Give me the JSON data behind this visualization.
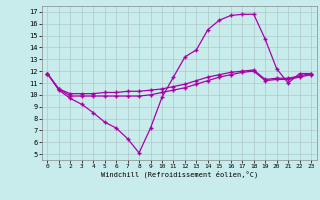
{
  "xlabel": "Windchill (Refroidissement éolien,°C)",
  "xlim": [
    -0.5,
    23.5
  ],
  "ylim": [
    4.5,
    17.5
  ],
  "yticks": [
    5,
    6,
    7,
    8,
    9,
    10,
    11,
    12,
    13,
    14,
    15,
    16,
    17
  ],
  "xticks": [
    0,
    1,
    2,
    3,
    4,
    5,
    6,
    7,
    8,
    9,
    10,
    11,
    12,
    13,
    14,
    15,
    16,
    17,
    18,
    19,
    20,
    21,
    22,
    23
  ],
  "background_color": "#c8ecec",
  "grid_color": "#b0c8c8",
  "line_color": "#aa00aa",
  "line1_x": [
    0,
    1,
    2,
    3,
    4,
    5,
    6,
    7,
    8,
    9,
    10,
    11,
    12,
    13,
    14,
    15,
    16,
    17,
    18,
    19,
    20,
    21,
    22,
    23
  ],
  "line1_y": [
    11.8,
    10.4,
    9.7,
    9.2,
    8.5,
    7.7,
    7.2,
    6.3,
    5.1,
    7.2,
    9.8,
    11.5,
    13.2,
    13.8,
    15.5,
    16.3,
    16.7,
    16.8,
    16.8,
    14.7,
    12.2,
    11.0,
    11.8,
    11.8
  ],
  "line2_x": [
    0,
    1,
    2,
    3,
    4,
    5,
    6,
    7,
    8,
    9,
    10,
    11,
    12,
    13,
    14,
    15,
    16,
    17,
    18,
    19,
    20,
    21,
    22,
    23
  ],
  "line2_y": [
    11.8,
    10.5,
    10.1,
    10.1,
    10.1,
    10.2,
    10.2,
    10.3,
    10.3,
    10.4,
    10.5,
    10.7,
    10.9,
    11.2,
    11.5,
    11.7,
    11.9,
    12.0,
    12.1,
    11.3,
    11.4,
    11.4,
    11.6,
    11.8
  ],
  "line3_x": [
    0,
    1,
    2,
    3,
    4,
    5,
    6,
    7,
    8,
    9,
    10,
    11,
    12,
    13,
    14,
    15,
    16,
    17,
    18,
    19,
    20,
    21,
    22,
    23
  ],
  "line3_y": [
    11.8,
    10.5,
    9.9,
    9.9,
    9.9,
    9.9,
    9.9,
    9.9,
    9.9,
    10.0,
    10.2,
    10.4,
    10.6,
    10.9,
    11.2,
    11.5,
    11.7,
    11.9,
    12.0,
    11.2,
    11.3,
    11.3,
    11.5,
    11.7
  ]
}
